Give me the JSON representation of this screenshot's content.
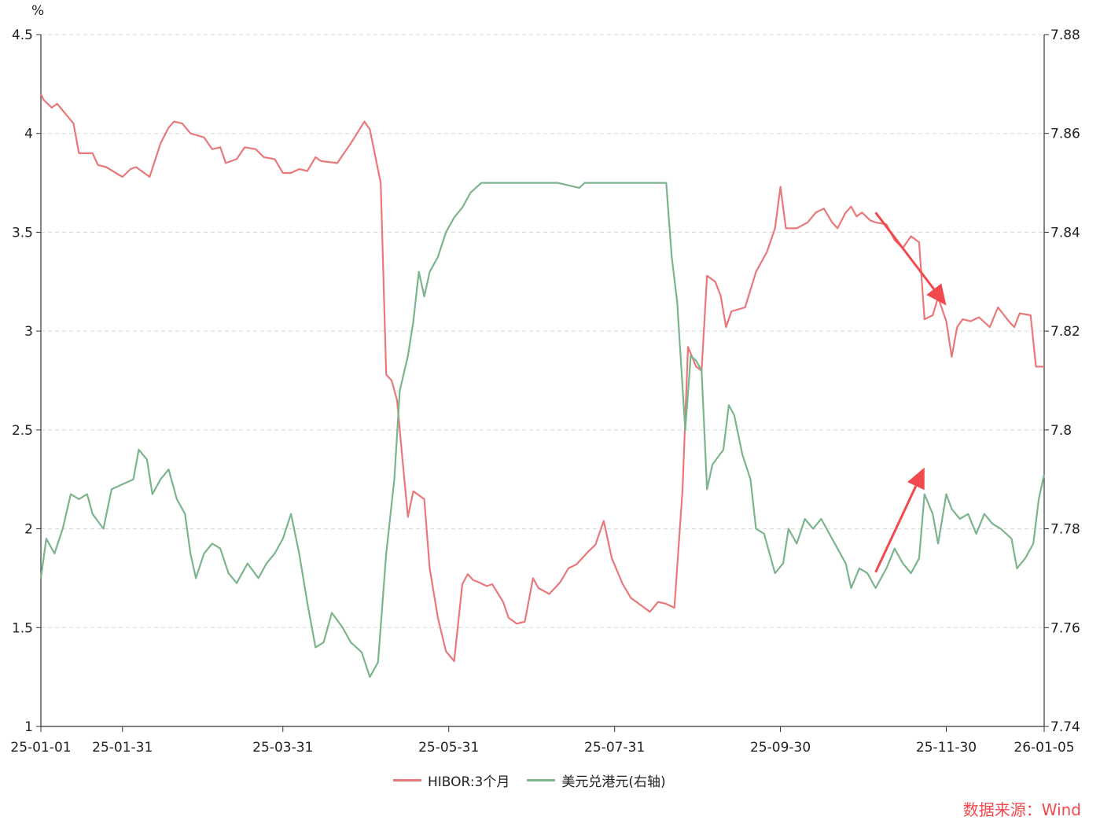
{
  "chart_data": {
    "type": "line",
    "left_axis_unit": "%",
    "left_ylim": [
      1,
      4.5
    ],
    "left_ticks": [
      "1",
      "1.5",
      "2",
      "2.5",
      "3",
      "3.5",
      "4",
      "4.5"
    ],
    "right_ylim": [
      7.74,
      7.88
    ],
    "right_ticks": [
      "7.74",
      "7.76",
      "7.78",
      "7.8",
      "7.82",
      "7.84",
      "7.86",
      "7.88"
    ],
    "xlim": [
      "2025-01-01",
      "2026-01-05"
    ],
    "x_ticks": [
      "25-01-01",
      "25-01-31",
      "25-03-31",
      "25-05-31",
      "25-07-31",
      "25-09-30",
      "25-11-30",
      "26-01-05"
    ],
    "x_tick_dates": [
      "2025-01-01",
      "2025-01-31",
      "2025-03-31",
      "2025-05-31",
      "2025-07-31",
      "2025-09-30",
      "2025-11-30",
      "2026-01-05"
    ],
    "grid": true,
    "legend_position": "bottom-center",
    "source_note": "数据来源：Wind",
    "series": [
      {
        "name": "HIBOR:3个月",
        "axis": "left",
        "color": "#e8787a",
        "points": [
          [
            "2025-01-01",
            4.2
          ],
          [
            "2025-01-02",
            4.17
          ],
          [
            "2025-01-05",
            4.13
          ],
          [
            "2025-01-07",
            4.15
          ],
          [
            "2025-01-10",
            4.1
          ],
          [
            "2025-01-13",
            4.05
          ],
          [
            "2025-01-15",
            3.9
          ],
          [
            "2025-01-20",
            3.9
          ],
          [
            "2025-01-22",
            3.84
          ],
          [
            "2025-01-25",
            3.83
          ],
          [
            "2025-01-31",
            3.78
          ],
          [
            "2025-02-03",
            3.82
          ],
          [
            "2025-02-05",
            3.83
          ],
          [
            "2025-02-08",
            3.8
          ],
          [
            "2025-02-10",
            3.78
          ],
          [
            "2025-02-14",
            3.95
          ],
          [
            "2025-02-17",
            4.03
          ],
          [
            "2025-02-19",
            4.06
          ],
          [
            "2025-02-22",
            4.05
          ],
          [
            "2025-02-25",
            4.0
          ],
          [
            "2025-03-02",
            3.98
          ],
          [
            "2025-03-05",
            3.92
          ],
          [
            "2025-03-08",
            3.93
          ],
          [
            "2025-03-10",
            3.85
          ],
          [
            "2025-03-14",
            3.87
          ],
          [
            "2025-03-17",
            3.93
          ],
          [
            "2025-03-21",
            3.92
          ],
          [
            "2025-03-24",
            3.88
          ],
          [
            "2025-03-28",
            3.87
          ],
          [
            "2025-03-31",
            3.8
          ],
          [
            "2025-04-03",
            3.8
          ],
          [
            "2025-04-06",
            3.82
          ],
          [
            "2025-04-09",
            3.81
          ],
          [
            "2025-04-12",
            3.88
          ],
          [
            "2025-04-14",
            3.86
          ],
          [
            "2025-04-20",
            3.85
          ],
          [
            "2025-04-25",
            3.95
          ],
          [
            "2025-04-30",
            4.06
          ],
          [
            "2025-05-02",
            4.02
          ],
          [
            "2025-05-06",
            3.75
          ],
          [
            "2025-05-08",
            2.78
          ],
          [
            "2025-05-10",
            2.75
          ],
          [
            "2025-05-12",
            2.65
          ],
          [
            "2025-05-14",
            2.35
          ],
          [
            "2025-05-16",
            2.06
          ],
          [
            "2025-05-18",
            2.19
          ],
          [
            "2025-05-22",
            2.15
          ],
          [
            "2025-05-24",
            1.8
          ],
          [
            "2025-05-27",
            1.55
          ],
          [
            "2025-05-30",
            1.38
          ],
          [
            "2025-06-02",
            1.33
          ],
          [
            "2025-06-05",
            1.72
          ],
          [
            "2025-06-07",
            1.77
          ],
          [
            "2025-06-09",
            1.74
          ],
          [
            "2025-06-11",
            1.73
          ],
          [
            "2025-06-14",
            1.71
          ],
          [
            "2025-06-16",
            1.72
          ],
          [
            "2025-06-20",
            1.63
          ],
          [
            "2025-06-22",
            1.55
          ],
          [
            "2025-06-25",
            1.52
          ],
          [
            "2025-06-28",
            1.53
          ],
          [
            "2025-07-01",
            1.75
          ],
          [
            "2025-07-03",
            1.7
          ],
          [
            "2025-07-07",
            1.67
          ],
          [
            "2025-07-11",
            1.73
          ],
          [
            "2025-07-14",
            1.8
          ],
          [
            "2025-07-17",
            1.82
          ],
          [
            "2025-07-21",
            1.88
          ],
          [
            "2025-07-24",
            1.92
          ],
          [
            "2025-07-27",
            2.04
          ],
          [
            "2025-07-30",
            1.85
          ],
          [
            "2025-08-03",
            1.72
          ],
          [
            "2025-08-06",
            1.65
          ],
          [
            "2025-08-09",
            1.62
          ],
          [
            "2025-08-13",
            1.58
          ],
          [
            "2025-08-16",
            1.63
          ],
          [
            "2025-08-19",
            1.62
          ],
          [
            "2025-08-22",
            1.6
          ],
          [
            "2025-08-25",
            2.2
          ],
          [
            "2025-08-27",
            2.92
          ],
          [
            "2025-08-30",
            2.82
          ],
          [
            "2025-09-01",
            2.8
          ],
          [
            "2025-09-03",
            3.28
          ],
          [
            "2025-09-06",
            3.25
          ],
          [
            "2025-09-08",
            3.18
          ],
          [
            "2025-09-10",
            3.02
          ],
          [
            "2025-09-12",
            3.1
          ],
          [
            "2025-09-17",
            3.12
          ],
          [
            "2025-09-21",
            3.3
          ],
          [
            "2025-09-25",
            3.4
          ],
          [
            "2025-09-28",
            3.52
          ],
          [
            "2025-09-30",
            3.73
          ],
          [
            "2025-10-02",
            3.52
          ],
          [
            "2025-10-06",
            3.52
          ],
          [
            "2025-10-10",
            3.55
          ],
          [
            "2025-10-13",
            3.6
          ],
          [
            "2025-10-16",
            3.62
          ],
          [
            "2025-10-19",
            3.55
          ],
          [
            "2025-10-21",
            3.52
          ],
          [
            "2025-10-24",
            3.6
          ],
          [
            "2025-10-26",
            3.63
          ],
          [
            "2025-10-28",
            3.58
          ],
          [
            "2025-10-30",
            3.6
          ],
          [
            "2025-11-02",
            3.56
          ],
          [
            "2025-11-04",
            3.55
          ],
          [
            "2025-11-08",
            3.54
          ],
          [
            "2025-11-11",
            3.46
          ],
          [
            "2025-11-14",
            3.42
          ],
          [
            "2025-11-17",
            3.48
          ],
          [
            "2025-11-20",
            3.45
          ],
          [
            "2025-11-22",
            3.06
          ],
          [
            "2025-11-25",
            3.08
          ],
          [
            "2025-11-27",
            3.17
          ],
          [
            "2025-11-30",
            3.05
          ],
          [
            "2025-12-02",
            2.87
          ],
          [
            "2025-12-04",
            3.02
          ],
          [
            "2025-12-06",
            3.06
          ],
          [
            "2025-12-09",
            3.05
          ],
          [
            "2025-12-12",
            3.07
          ],
          [
            "2025-12-16",
            3.02
          ],
          [
            "2025-12-19",
            3.12
          ],
          [
            "2025-12-23",
            3.05
          ],
          [
            "2025-12-25",
            3.02
          ],
          [
            "2025-12-27",
            3.09
          ],
          [
            "2025-12-31",
            3.08
          ],
          [
            "2026-01-02",
            2.82
          ],
          [
            "2026-01-05",
            2.82
          ]
        ]
      },
      {
        "name": "美元兑港元(右轴)",
        "axis": "right",
        "color": "#7cb48c",
        "points": [
          [
            "2025-01-01",
            7.77
          ],
          [
            "2025-01-03",
            7.778
          ],
          [
            "2025-01-06",
            7.775
          ],
          [
            "2025-01-09",
            7.78
          ],
          [
            "2025-01-12",
            7.787
          ],
          [
            "2025-01-15",
            7.786
          ],
          [
            "2025-01-18",
            7.787
          ],
          [
            "2025-01-20",
            7.783
          ],
          [
            "2025-01-24",
            7.78
          ],
          [
            "2025-01-27",
            7.788
          ],
          [
            "2025-01-31",
            7.789
          ],
          [
            "2025-02-04",
            7.79
          ],
          [
            "2025-02-06",
            7.796
          ],
          [
            "2025-02-09",
            7.794
          ],
          [
            "2025-02-11",
            7.787
          ],
          [
            "2025-02-14",
            7.79
          ],
          [
            "2025-02-17",
            7.792
          ],
          [
            "2025-02-20",
            7.786
          ],
          [
            "2025-02-23",
            7.783
          ],
          [
            "2025-02-25",
            7.775
          ],
          [
            "2025-02-27",
            7.77
          ],
          [
            "2025-03-02",
            7.775
          ],
          [
            "2025-03-05",
            7.777
          ],
          [
            "2025-03-08",
            7.776
          ],
          [
            "2025-03-11",
            7.771
          ],
          [
            "2025-03-14",
            7.769
          ],
          [
            "2025-03-18",
            7.773
          ],
          [
            "2025-03-22",
            7.77
          ],
          [
            "2025-03-25",
            7.773
          ],
          [
            "2025-03-28",
            7.775
          ],
          [
            "2025-03-31",
            7.778
          ],
          [
            "2025-04-03",
            7.783
          ],
          [
            "2025-04-06",
            7.775
          ],
          [
            "2025-04-09",
            7.765
          ],
          [
            "2025-04-12",
            7.756
          ],
          [
            "2025-04-15",
            7.757
          ],
          [
            "2025-04-18",
            7.763
          ],
          [
            "2025-04-22",
            7.76
          ],
          [
            "2025-04-25",
            7.757
          ],
          [
            "2025-04-29",
            7.755
          ],
          [
            "2025-05-02",
            7.75
          ],
          [
            "2025-05-05",
            7.753
          ],
          [
            "2025-05-08",
            7.775
          ],
          [
            "2025-05-11",
            7.79
          ],
          [
            "2025-05-13",
            7.808
          ],
          [
            "2025-05-16",
            7.815
          ],
          [
            "2025-05-18",
            7.822
          ],
          [
            "2025-05-20",
            7.832
          ],
          [
            "2025-05-22",
            7.827
          ],
          [
            "2025-05-24",
            7.832
          ],
          [
            "2025-05-27",
            7.835
          ],
          [
            "2025-05-30",
            7.84
          ],
          [
            "2025-06-02",
            7.843
          ],
          [
            "2025-06-05",
            7.845
          ],
          [
            "2025-06-08",
            7.848
          ],
          [
            "2025-06-12",
            7.85
          ],
          [
            "2025-06-20",
            7.85
          ],
          [
            "2025-07-01",
            7.85
          ],
          [
            "2025-07-10",
            7.85
          ],
          [
            "2025-07-18",
            7.849
          ],
          [
            "2025-07-20",
            7.85
          ],
          [
            "2025-07-30",
            7.85
          ],
          [
            "2025-08-10",
            7.85
          ],
          [
            "2025-08-19",
            7.85
          ],
          [
            "2025-08-21",
            7.835
          ],
          [
            "2025-08-23",
            7.826
          ],
          [
            "2025-08-26",
            7.8
          ],
          [
            "2025-08-28",
            7.815
          ],
          [
            "2025-08-30",
            7.814
          ],
          [
            "2025-09-01",
            7.812
          ],
          [
            "2025-09-03",
            7.788
          ],
          [
            "2025-09-05",
            7.793
          ],
          [
            "2025-09-09",
            7.796
          ],
          [
            "2025-09-11",
            7.805
          ],
          [
            "2025-09-13",
            7.803
          ],
          [
            "2025-09-16",
            7.795
          ],
          [
            "2025-09-19",
            7.79
          ],
          [
            "2025-09-21",
            7.78
          ],
          [
            "2025-09-24",
            7.779
          ],
          [
            "2025-09-26",
            7.775
          ],
          [
            "2025-09-28",
            7.771
          ],
          [
            "2025-10-01",
            7.773
          ],
          [
            "2025-10-03",
            7.78
          ],
          [
            "2025-10-06",
            7.777
          ],
          [
            "2025-10-09",
            7.782
          ],
          [
            "2025-10-12",
            7.78
          ],
          [
            "2025-10-15",
            7.782
          ],
          [
            "2025-10-18",
            7.779
          ],
          [
            "2025-10-21",
            7.776
          ],
          [
            "2025-10-24",
            7.773
          ],
          [
            "2025-10-26",
            7.768
          ],
          [
            "2025-10-29",
            7.772
          ],
          [
            "2025-11-01",
            7.771
          ],
          [
            "2025-11-04",
            7.768
          ],
          [
            "2025-11-08",
            7.772
          ],
          [
            "2025-11-11",
            7.776
          ],
          [
            "2025-11-14",
            7.773
          ],
          [
            "2025-11-17",
            7.771
          ],
          [
            "2025-11-20",
            7.774
          ],
          [
            "2025-11-22",
            7.787
          ],
          [
            "2025-11-25",
            7.783
          ],
          [
            "2025-11-27",
            7.777
          ],
          [
            "2025-11-30",
            7.787
          ],
          [
            "2025-12-02",
            7.784
          ],
          [
            "2025-12-05",
            7.782
          ],
          [
            "2025-12-08",
            7.783
          ],
          [
            "2025-12-11",
            7.779
          ],
          [
            "2025-12-14",
            7.783
          ],
          [
            "2025-12-17",
            7.781
          ],
          [
            "2025-12-20",
            7.78
          ],
          [
            "2025-12-24",
            7.778
          ],
          [
            "2025-12-26",
            7.772
          ],
          [
            "2025-12-29",
            7.774
          ],
          [
            "2026-01-01",
            7.777
          ],
          [
            "2026-01-03",
            7.786
          ],
          [
            "2026-01-05",
            7.791
          ]
        ]
      }
    ],
    "annotations": [
      {
        "type": "arrow",
        "color": "#f04a4f",
        "from": [
          "2025-11-04",
          3.6
        ],
        "to": [
          "2025-11-30",
          3.13
        ]
      },
      {
        "type": "arrow",
        "color": "#f04a4f",
        "from": [
          "2025-11-04",
          1.78
        ],
        "to": [
          "2025-11-22",
          2.31
        ]
      }
    ]
  }
}
